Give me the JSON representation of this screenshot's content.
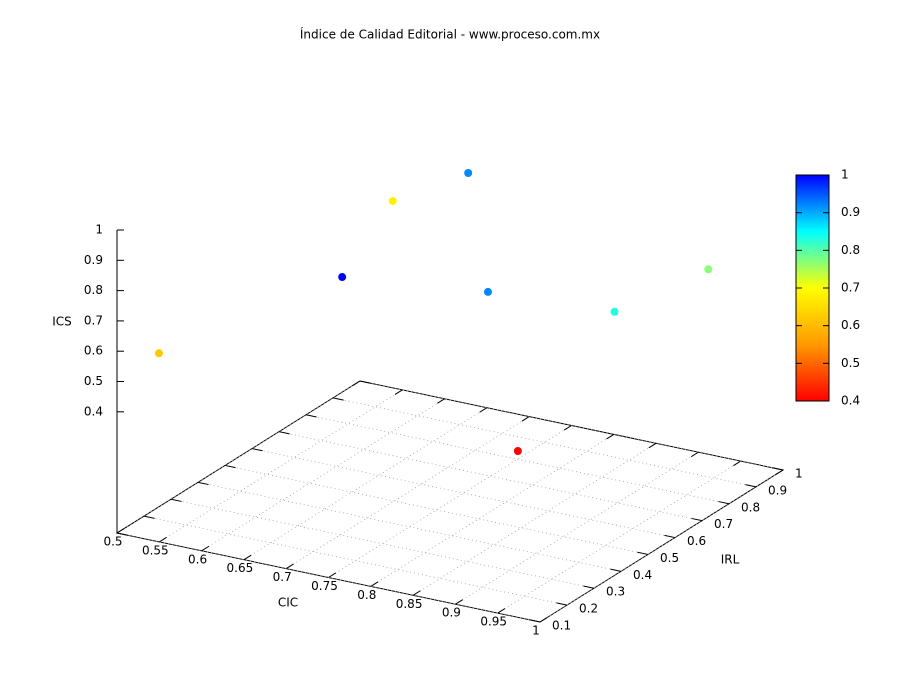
{
  "chart_data": {
    "type": "scatter3d",
    "title": "Índice de Calidad Editorial - www.proceso.com.mx",
    "x_label": "CIC",
    "y_label": "IRL",
    "z_label": "ICS",
    "x": [
      0.54,
      0.68,
      0.66,
      0.73,
      0.83,
      0.97,
      0.95,
      0.91
    ],
    "y": [
      0.13,
      0.37,
      0.62,
      0.68,
      0.44,
      0.47,
      0.88,
      0.3
    ],
    "z": [
      0.6,
      0.8,
      0.9,
      1.0,
      0.8,
      0.8,
      0.7,
      0.4
    ],
    "color_values": [
      0.62,
      1.0,
      0.68,
      0.92,
      0.92,
      0.83,
      0.77,
      0.4
    ],
    "xlim": [
      0.5,
      1
    ],
    "xticks": [
      0.5,
      0.55,
      0.6,
      0.65,
      0.7,
      0.75,
      0.8,
      0.85,
      0.9,
      0.95,
      1
    ],
    "ylim": [
      0.1,
      1
    ],
    "yticks": [
      0.1,
      0.2,
      0.3,
      0.4,
      0.5,
      0.6,
      0.7,
      0.8,
      0.9,
      1
    ],
    "zlim": [
      0,
      1
    ],
    "zticks": [
      0.4,
      0.5,
      0.6,
      0.7,
      0.8,
      0.9,
      1
    ],
    "colorbar": {
      "lim": [
        0.4,
        1
      ],
      "ticks": [
        0.4,
        0.5,
        0.6,
        0.7,
        0.8,
        0.9,
        1
      ],
      "palette": [
        "#ff0000",
        "#ff9900",
        "#ffff00",
        "#00ffff",
        "#0000ff"
      ]
    },
    "grid": true
  }
}
